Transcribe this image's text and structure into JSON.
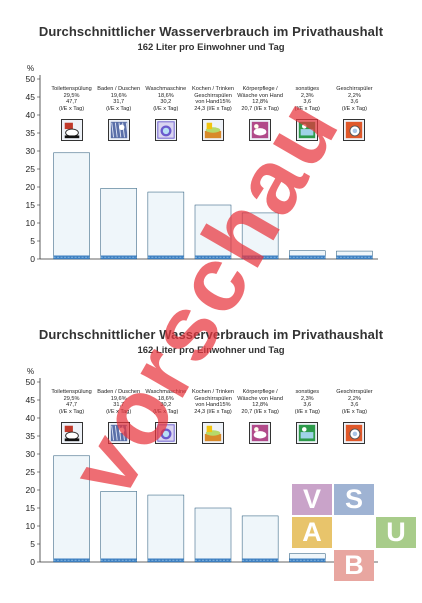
{
  "watermark": {
    "text": "vorschau",
    "color": "#e8353d"
  },
  "logo": {
    "letters": [
      "V",
      "S",
      "A",
      "U",
      "B"
    ],
    "colors": [
      "#c9a3c9",
      "#9fb3d3",
      "#e8c46b",
      "#a8cc8a",
      "#e8a6a0"
    ]
  },
  "charts": [
    {
      "title": "Durchschnittlicher Wasserverbrauch im Privathaushalt",
      "subtitle": "162 Liter pro Einwohner und Tag",
      "ylabel": "%",
      "categories": [
        {
          "lines": [
            "Toilettenspülung",
            "29,5%",
            "47,7",
            "(l/E x Tag)"
          ],
          "icon": "toilet-icon",
          "color": "#c0392b"
        },
        {
          "lines": [
            "Baden / Duschen",
            "19,6%",
            "31,7",
            "(l/E x Tag)"
          ],
          "icon": "shower-icon",
          "color": "#5a6fa8"
        },
        {
          "lines": [
            "Waschmaschine",
            "18,6%",
            "30,2",
            "(l/E x Tag)"
          ],
          "icon": "washing-machine-icon",
          "color": "#6a5acd"
        },
        {
          "lines": [
            "Kochen / Trinken",
            "Geschirrspülen",
            "von Hand15%",
            "24,3 (l/E x Tag)"
          ],
          "icon": "cooking-icon",
          "color": "#d88a2a"
        },
        {
          "lines": [
            "Körperpflege /",
            "Wäsche von Hand",
            "12,8%",
            "20,7 (l/E x Tag)"
          ],
          "icon": "bodycare-icon",
          "color": "#b14a8a"
        },
        {
          "lines": [
            "sonstiges",
            "2,3%",
            "3,6",
            "(l/E x Tag)"
          ],
          "icon": "misc-icon",
          "color": "#2c9a4a"
        },
        {
          "lines": [
            "Geschirrspüler",
            "2,2%",
            "3,6",
            "(l/E x Tag)"
          ],
          "icon": "dishwasher-icon",
          "color": "#e0582a"
        }
      ]
    },
    {
      "title": "Durchschnittlicher Wasserverbrauch im Privathaushalt",
      "subtitle": "162 Liter pro Einwohner und Tag",
      "ylabel": "%",
      "categories": [
        {
          "lines": [
            "Toilettenspülung",
            "29,5%",
            "47,7",
            "(l/E x Tag)"
          ],
          "icon": "toilet-icon",
          "color": "#c0392b"
        },
        {
          "lines": [
            "Baden / Duschen",
            "19,6%",
            "31,7",
            "(l/E x Tag)"
          ],
          "icon": "shower-icon",
          "color": "#5a6fa8"
        },
        {
          "lines": [
            "Waschmaschine",
            "18,6%",
            "30,2",
            "(l/E x Tag)"
          ],
          "icon": "washing-machine-icon",
          "color": "#6a5acd"
        },
        {
          "lines": [
            "Kochen / Trinken",
            "Geschirrspülen",
            "von Hand15%",
            "24,3 (l/E x Tag)"
          ],
          "icon": "cooking-icon",
          "color": "#d88a2a"
        },
        {
          "lines": [
            "Körperpflege /",
            "Wäsche von Hand",
            "12,8%",
            "20,7 (l/E x Tag)"
          ],
          "icon": "bodycare-icon",
          "color": "#b14a8a"
        },
        {
          "lines": [
            "sonstiges",
            "2,3%",
            "3,6",
            "(l/E x Tag)"
          ],
          "icon": "misc-icon",
          "color": "#2c9a4a"
        },
        {
          "lines": [
            "Geschirrspüler",
            "2,2%",
            "3,6",
            "(l/E x Tag)"
          ],
          "icon": "dishwasher-icon",
          "color": "#e0582a"
        }
      ]
    }
  ],
  "chart_data": [
    {
      "type": "bar",
      "title": "Durchschnittlicher Wasserverbrauch im Privathaushalt",
      "subtitle": "162 Liter pro Einwohner und Tag",
      "ylabel": "%",
      "ylim": [
        0,
        50
      ],
      "yticks": [
        0,
        5,
        10,
        15,
        20,
        25,
        30,
        35,
        40,
        45,
        50
      ],
      "categories": [
        "Toilettenspülung",
        "Baden / Duschen",
        "Waschmaschine",
        "Kochen / Trinken Geschirrspülen von Hand",
        "Körperpflege / Wäsche von Hand",
        "sonstiges",
        "Geschirrspüler"
      ],
      "values": [
        29.5,
        19.6,
        18.6,
        15,
        12.8,
        2.3,
        2.2
      ],
      "grid": false
    },
    {
      "type": "bar",
      "title": "Durchschnittlicher Wasserverbrauch im Privathaushalt",
      "subtitle": "162 Liter pro Einwohner und Tag",
      "ylabel": "%",
      "ylim": [
        0,
        50
      ],
      "yticks": [
        0,
        5,
        10,
        15,
        20,
        25,
        30,
        35,
        40,
        45,
        50
      ],
      "categories": [
        "Toilettenspülung",
        "Baden / Duschen",
        "Waschmaschine",
        "Kochen / Trinken Geschirrspülen von Hand",
        "Körperpflege / Wäsche von Hand",
        "sonstiges",
        "Geschirrspüler"
      ],
      "values": [
        29.5,
        19.6,
        18.6,
        15,
        12.8,
        2.3,
        2.2
      ],
      "grid": false
    }
  ]
}
